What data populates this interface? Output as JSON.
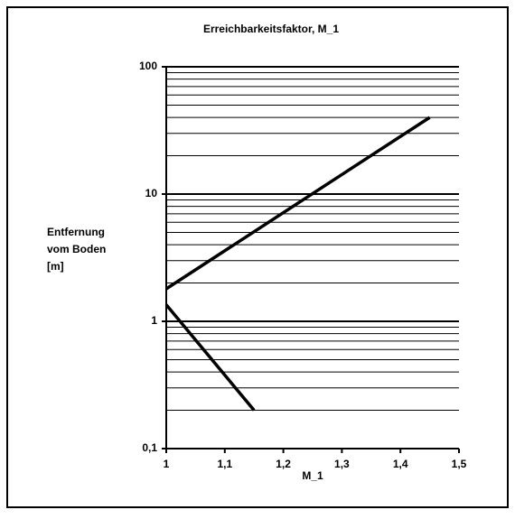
{
  "chart_data": {
    "type": "line",
    "title": "Erreichbarkeitsfaktor, M_1",
    "xlabel": "M_1",
    "ylabel": [
      "Entfernung",
      "vom Boden",
      "[m]"
    ],
    "series": [
      {
        "x": [
          1,
          1.45
        ],
        "values": [
          1.8,
          40
        ],
        "color": "#000000"
      },
      {
        "x": [
          1,
          1.15
        ],
        "values": [
          1.35,
          0.2
        ],
        "color": "#000000"
      }
    ],
    "xlim": [
      1,
      1.5
    ],
    "xticks": [
      {
        "value": 1,
        "label": "1"
      },
      {
        "value": 1.1,
        "label": "1,1"
      },
      {
        "value": 1.2,
        "label": "1,2"
      },
      {
        "value": 1.3,
        "label": "1,3"
      },
      {
        "value": 1.4,
        "label": "1,4"
      },
      {
        "value": 1.5,
        "label": "1,5"
      }
    ],
    "ylim": [
      0.1,
      100
    ],
    "ylog": true,
    "yticks": [
      {
        "value": 0.1,
        "label": "0,1"
      },
      1,
      10,
      100
    ],
    "minor_yticks": [
      0.2,
      0.3,
      0.4,
      0.5,
      0.6,
      0.7,
      0.8,
      0.9,
      2,
      3,
      4,
      5,
      6,
      7,
      8,
      9,
      20,
      30,
      40,
      50,
      60,
      70,
      80,
      90
    ],
    "grid": true
  }
}
